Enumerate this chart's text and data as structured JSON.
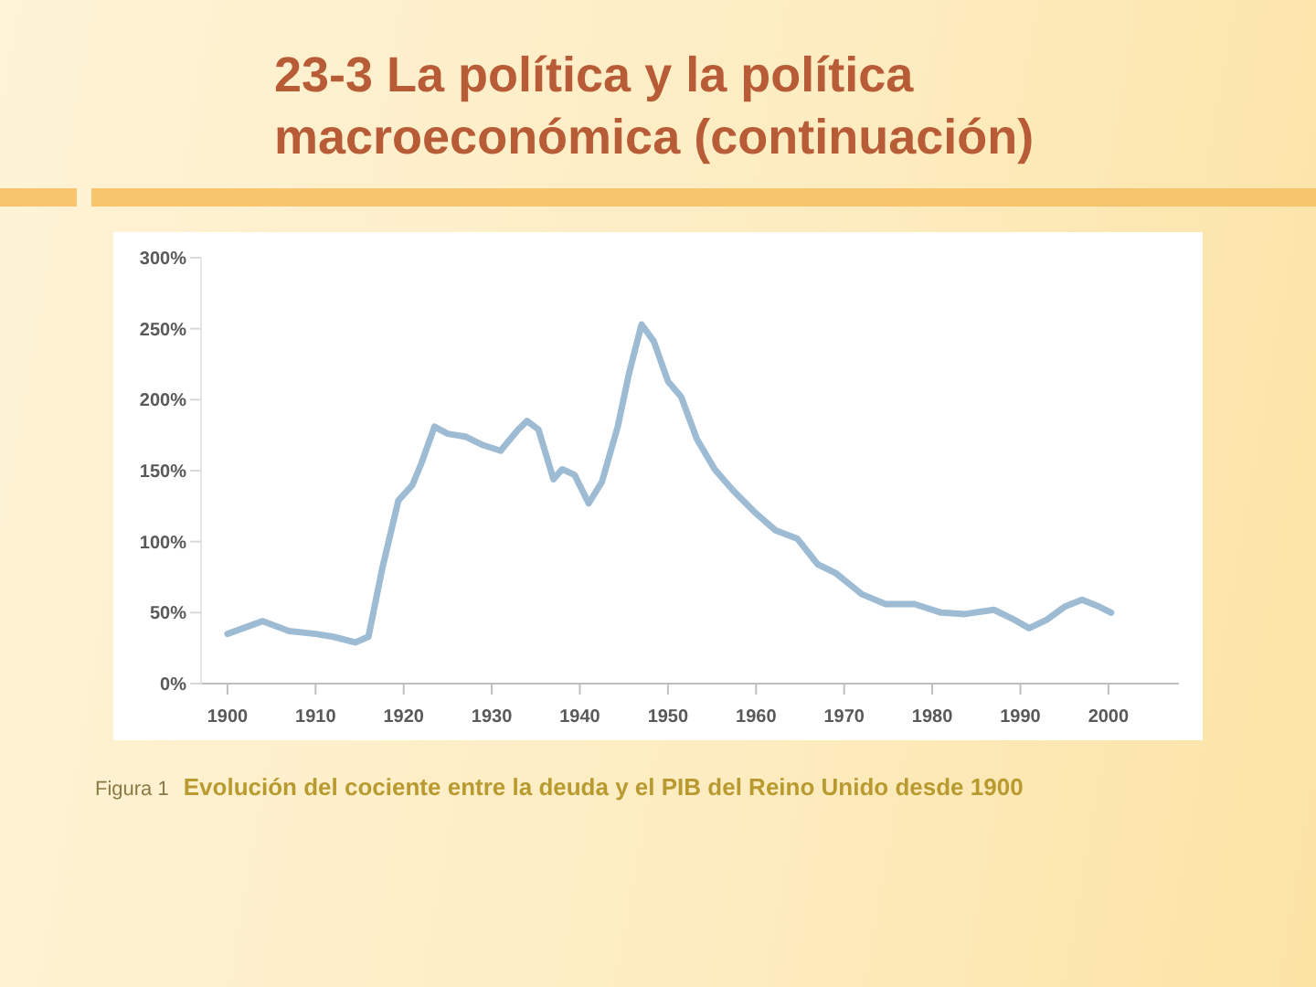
{
  "chart_data": {
    "type": "line",
    "title": "23-3  La política y la política macroeconómica (continuación)",
    "annotations": [
      "Figura 1",
      "Evolución del cociente entre la deuda y el PIB del Reino Unido desde 1900"
    ],
    "x": [
      1900,
      1904,
      1907,
      1910,
      1912,
      1914.5,
      1916,
      1917.6,
      1919.4,
      1921,
      1922,
      1923.5,
      1925,
      1927,
      1929,
      1931,
      1933,
      1934,
      1935.3,
      1937,
      1938,
      1939.4,
      1941,
      1942.5,
      1944.3,
      1945.6,
      1947,
      1948.4,
      1950,
      1951.5,
      1953.3,
      1955.3,
      1957.4,
      1959.8,
      1962.2,
      1964.7,
      1967,
      1969,
      1972,
      1974.7,
      1978,
      1981,
      1983.7,
      1987,
      1989,
      1991,
      1993,
      1995,
      1997,
      1999,
      2000.3
    ],
    "values": [
      35,
      44,
      37,
      35,
      33,
      29,
      33,
      82,
      129,
      140,
      155,
      181,
      176,
      174,
      168,
      164,
      179,
      185,
      179,
      144,
      151,
      147,
      127,
      142,
      181,
      219,
      253,
      241,
      213,
      202,
      172,
      151,
      136,
      121,
      108,
      102,
      84,
      78,
      63,
      56,
      56,
      50,
      49,
      52,
      46,
      39,
      45,
      54,
      59,
      54,
      50
    ],
    "color": "#9dbcd4",
    "xlim": [
      1897,
      2008
    ],
    "xticks": [
      1900,
      1910,
      1920,
      1930,
      1940,
      1950,
      1960,
      1970,
      1980,
      1990,
      2000
    ],
    "ylim": [
      0,
      300
    ],
    "yticks": [
      {
        "value": 0,
        "label": "0%"
      },
      {
        "value": 50,
        "label": "50%"
      },
      {
        "value": 100,
        "label": "100%"
      },
      {
        "value": 150,
        "label": "150%"
      },
      {
        "value": 200,
        "label": "200%"
      },
      {
        "value": 250,
        "label": "250%"
      },
      {
        "value": 300,
        "label": "300%"
      }
    ]
  }
}
